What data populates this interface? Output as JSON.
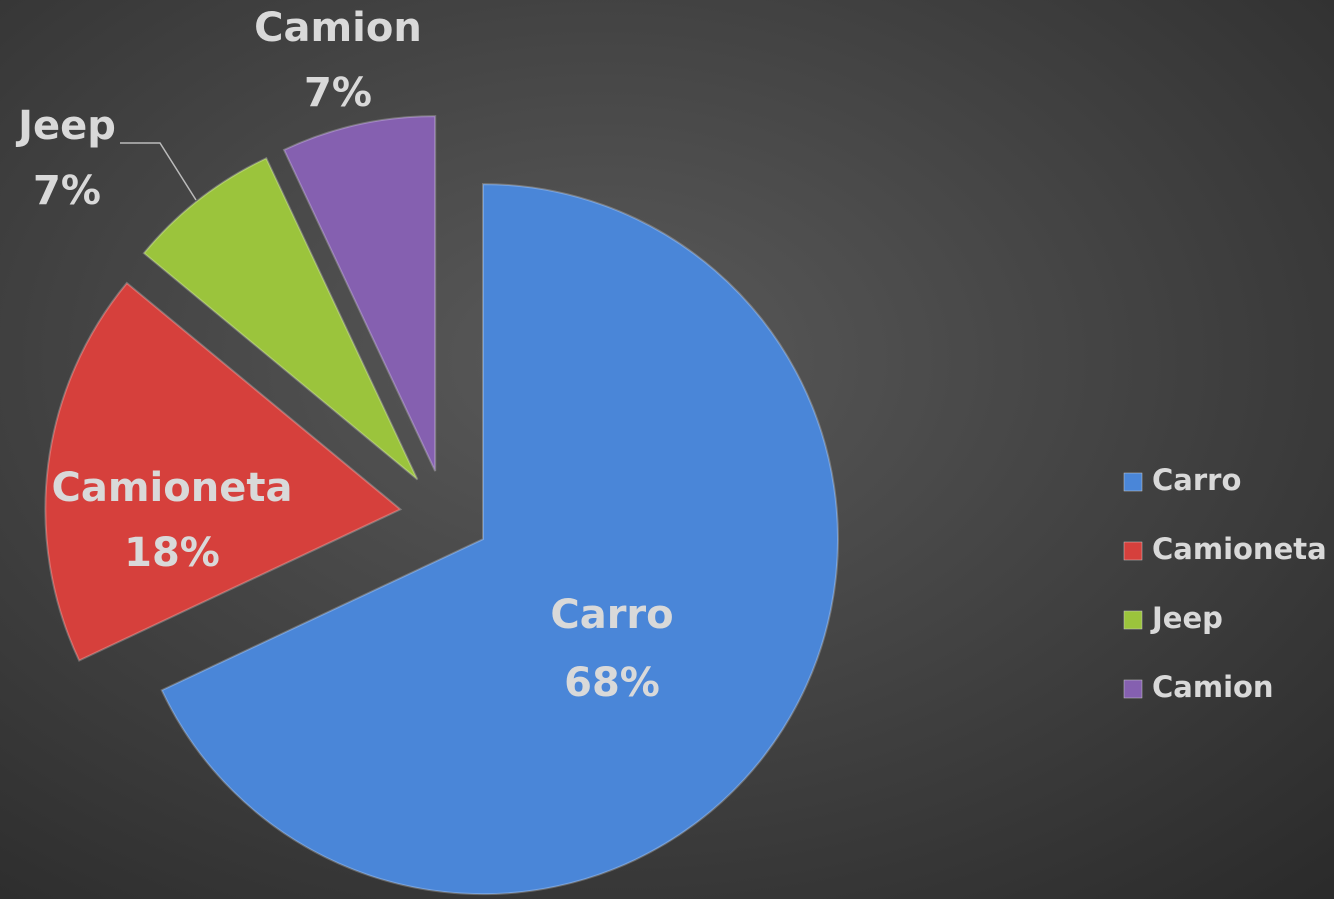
{
  "chart_data": {
    "type": "pie",
    "categories": [
      "Carro",
      "Camioneta",
      "Jeep",
      "Camion"
    ],
    "values": [
      68,
      18,
      7,
      7
    ],
    "value_labels": [
      "68%",
      "18%",
      "7%",
      "7%"
    ],
    "colors": [
      "#4a86d8",
      "#d6403c",
      "#9bc43c",
      "#8560b0"
    ],
    "legend": "right"
  }
}
